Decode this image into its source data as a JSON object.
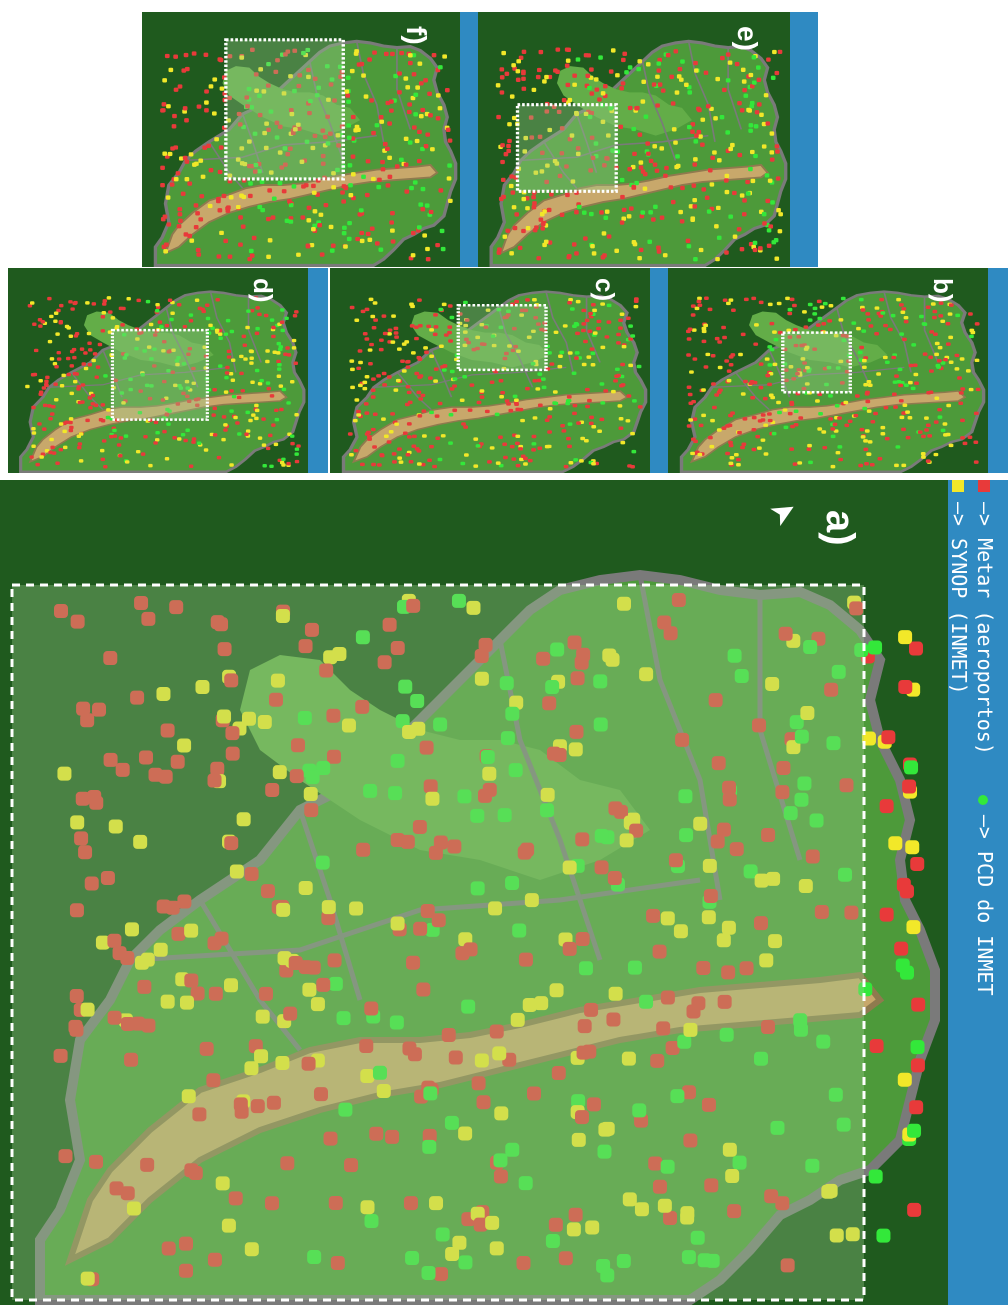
{
  "legend": {
    "metar": "—> Metar (aeroportos)",
    "synop": "—> SYNOP (INMET)",
    "pcd": "—> PCD do INMET"
  },
  "colors": {
    "ocean": "#1f5a1e",
    "land": "#4d9a3a",
    "land_light": "#63ad48",
    "selection_overlay": "#9ccf8b",
    "mountain": "#c8a86b",
    "mountain_dark": "#8f7a4e",
    "border": "#7a7a7a",
    "metar": "#e83a3a",
    "synop": "#f2e829",
    "pcd": "#33e83a",
    "legend_bg": "#2f8ac2"
  },
  "panels": [
    {
      "id": "a",
      "label": "a)"
    },
    {
      "id": "b",
      "label": "b)"
    },
    {
      "id": "c",
      "label": "c)"
    },
    {
      "id": "d",
      "label": "d)"
    },
    {
      "id": "e",
      "label": "e)"
    },
    {
      "id": "f",
      "label": "f)"
    }
  ]
}
